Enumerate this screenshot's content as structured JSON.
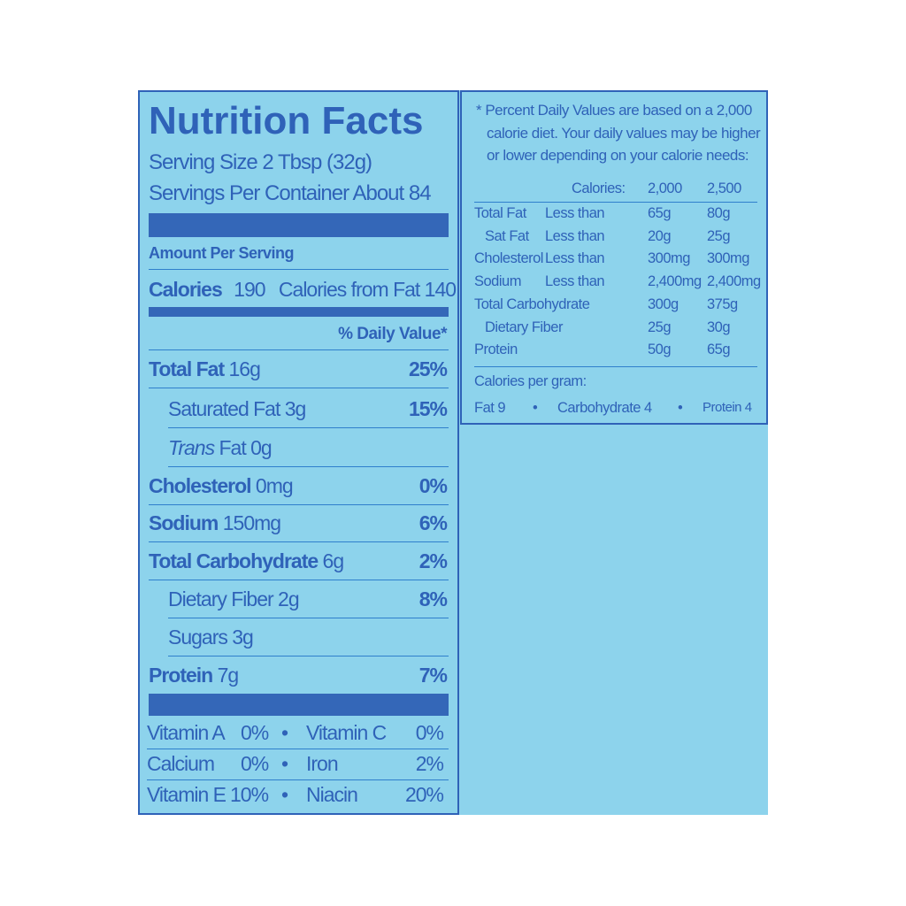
{
  "colors": {
    "background": "#8dd3ec",
    "ink": "#2f62b8",
    "rule": "#2f7fcc"
  },
  "facts": {
    "title": "Nutrition Facts",
    "serving_size": "Serving Size  2 Tbsp (32g)",
    "servings_per_container": "Servings Per Container  About 84",
    "amount_per_serving": "Amount Per Serving",
    "calories_label": "Calories",
    "calories_value": "190",
    "calories_from_fat": "Calories from Fat 140",
    "daily_value_header": "% Daily Value*",
    "nutrients": [
      {
        "label": "Total Fat",
        "amount": "16g",
        "dv": "25%"
      },
      {
        "label": "Saturated Fat",
        "amount": "3g",
        "dv": "15%"
      },
      {
        "label": "Trans",
        "label2": "Fat 0g",
        "dv": ""
      },
      {
        "label": "Cholesterol",
        "amount": "0mg",
        "dv": "0%"
      },
      {
        "label": "Sodium",
        "amount": "150mg",
        "dv": "6%"
      },
      {
        "label": "Total Carbohydrate",
        "amount": "6g",
        "dv": "2%"
      },
      {
        "label": "Dietary Fiber",
        "amount": "2g",
        "dv": "8%"
      },
      {
        "label": "Sugars",
        "amount": "3g",
        "dv": ""
      },
      {
        "label": "Protein",
        "amount": "7g",
        "dv": "7%"
      }
    ],
    "vitamins": [
      {
        "a": "Vitamin A",
        "av": "0%",
        "b": "Vitamin C",
        "bv": "0%"
      },
      {
        "a": "Calcium",
        "av": "0%",
        "b": "Iron",
        "bv": "2%"
      },
      {
        "a": "Vitamin E",
        "av": "10%",
        "b": "Niacin",
        "bv": "20%"
      }
    ],
    "bullet": "•"
  },
  "footnote": {
    "lines": [
      "* Percent Daily Values are based on a 2,000",
      "calorie diet. Your daily values may be higher",
      "or lower depending on your calorie needs:"
    ],
    "header": {
      "calories": "Calories:",
      "c2000": "2,000",
      "c2500": "2,500"
    },
    "rows": [
      {
        "name": "Total Fat",
        "qual": "Less than",
        "v1": "65g",
        "v2": "80g"
      },
      {
        "name": "Sat Fat",
        "qual": "Less than",
        "v1": "20g",
        "v2": "25g"
      },
      {
        "name": "Cholesterol",
        "qual": "Less than",
        "v1": "300mg",
        "v2": "300mg"
      },
      {
        "name": "Sodium",
        "qual": "Less than",
        "v1": "2,400mg",
        "v2": "2,400mg"
      },
      {
        "name": "Total Carbohydrate",
        "qual": "",
        "v1": "300g",
        "v2": "375g"
      },
      {
        "name": "Dietary Fiber",
        "qual": "",
        "v1": "25g",
        "v2": "30g"
      },
      {
        "name": "Protein",
        "qual": "",
        "v1": "50g",
        "v2": "65g"
      }
    ],
    "per_gram_label": "Calories per gram:",
    "per_gram": {
      "fat": "Fat 9",
      "carb": "Carbohydrate 4",
      "protein": "Protein 4"
    }
  }
}
